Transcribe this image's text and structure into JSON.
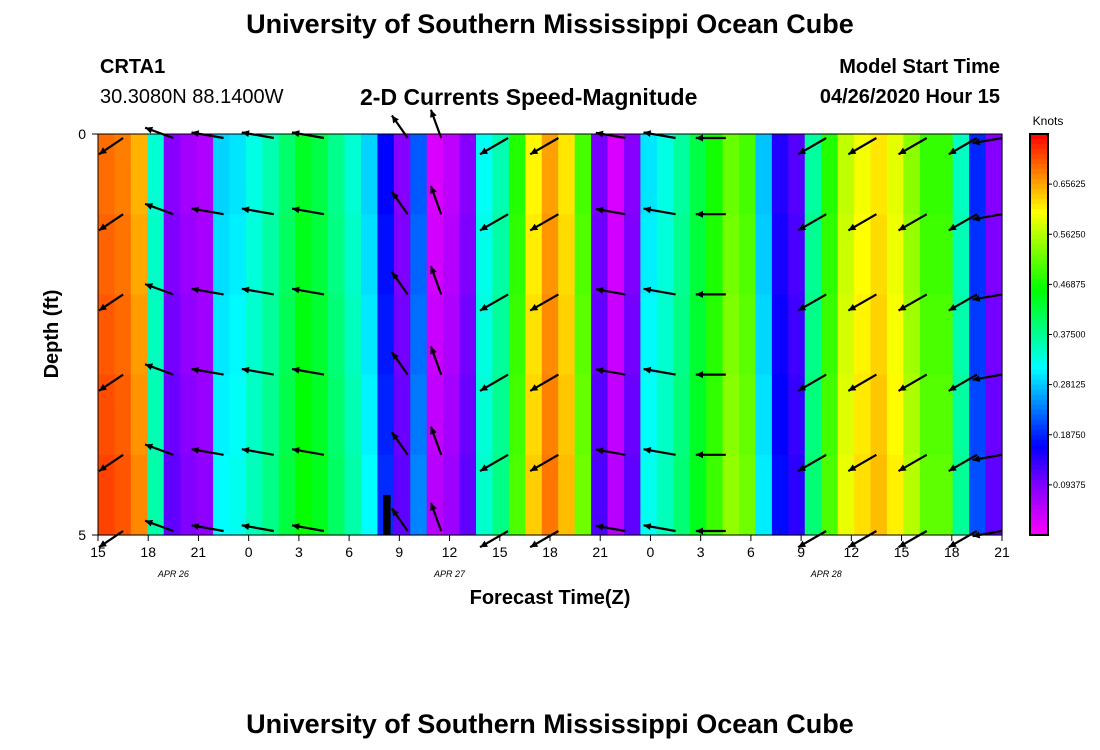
{
  "header": {
    "title": "University of Southern Mississippi Ocean Cube",
    "station_id": "CRTA1",
    "coords": "30.3080N 88.1400W",
    "subtitle": "2-D Currents Speed-Magnitude",
    "model_start_label": "Model Start Time",
    "model_start_value": "04/26/2020 Hour 15"
  },
  "footer": {
    "title": "University of Southern Mississippi Ocean Cube"
  },
  "chart_data": {
    "type": "heatmap",
    "title": "2-D Currents Speed-Magnitude",
    "xlabel": "Forecast Time(Z)",
    "ylabel": "Depth (ft)",
    "x_hours": [
      0,
      3,
      6,
      9,
      12,
      15,
      18,
      21,
      24,
      27,
      30,
      33,
      36,
      39,
      42,
      45,
      48,
      51,
      54
    ],
    "x_tick_labels": [
      "15",
      "18",
      "21",
      "0",
      "3",
      "6",
      "9",
      "12",
      "15",
      "18",
      "21",
      "0",
      "3",
      "6",
      "9",
      "12",
      "15",
      "18",
      "21"
    ],
    "date_labels": [
      {
        "label": "APR  26",
        "hour": 4.5
      },
      {
        "label": "APR  27",
        "hour": 21
      },
      {
        "label": "APR  28",
        "hour": 43.5
      }
    ],
    "y_tick_labels": [
      "0",
      "5"
    ],
    "ylim": [
      0,
      5
    ],
    "depth_levels": [
      0,
      1,
      2,
      3,
      4,
      5
    ],
    "colorbar": {
      "label": "Knots",
      "ticks": [
        "0.65625",
        "0.56250",
        "0.46875",
        "0.37500",
        "0.28125",
        "0.18750",
        "0.09375"
      ],
      "tick_values": [
        0.65625,
        0.5625,
        0.46875,
        0.375,
        0.28125,
        0.1875,
        0.09375
      ],
      "range": [
        0,
        0.75
      ]
    },
    "speed_by_hour": [
      0.7,
      0.69,
      0.66,
      0.35,
      0.1,
      0.08,
      0.07,
      0.3,
      0.31,
      0.34,
      0.37,
      0.41,
      0.45,
      0.43,
      0.39,
      0.35,
      0.3,
      0.18,
      0.1,
      0.23,
      0.04,
      0.06,
      0.1,
      0.33,
      0.37,
      0.49,
      0.62,
      0.67,
      0.63,
      0.51,
      0.11,
      0.04,
      0.1,
      0.31,
      0.34,
      0.38,
      0.43,
      0.48,
      0.53,
      0.51,
      0.29,
      0.16,
      0.13,
      0.38,
      0.49,
      0.58,
      0.61,
      0.63,
      0.6,
      0.55,
      0.5,
      0.5,
      0.36,
      0.2,
      0.1
    ],
    "gap_hour": 17,
    "gap_depth_from": 4.5,
    "vectors": {
      "hours": [
        1.5,
        4.5,
        7.5,
        10.5,
        13.5,
        18.5,
        20.5,
        24.5,
        27.5,
        31.5,
        34.5,
        37.5,
        43.5,
        46.5,
        49.5,
        52.5,
        54
      ],
      "depths": [
        0.05,
        1,
        2,
        3,
        4,
        4.95
      ],
      "angles_deg": [
        -30,
        20,
        10,
        10,
        10,
        55,
        70,
        -30,
        -30,
        10,
        10,
        0,
        -30,
        -30,
        -30,
        -30,
        -10
      ],
      "lengths": [
        0.65,
        0.6,
        0.65,
        0.65,
        0.65,
        0.55,
        0.6,
        0.65,
        0.65,
        0.6,
        0.65,
        0.6,
        0.65,
        0.65,
        0.65,
        0.65,
        0.6
      ]
    }
  }
}
